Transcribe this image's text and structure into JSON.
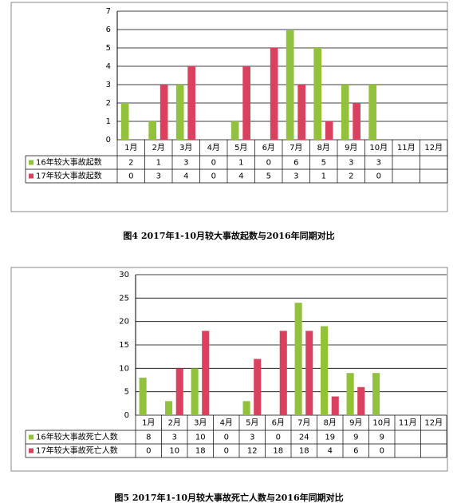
{
  "chart_data": [
    {
      "type": "bar",
      "caption": "图4  2017年1-10月较大事故起数与2016年同期对比",
      "categories": [
        "1月",
        "2月",
        "3月",
        "4月",
        "5月",
        "6月",
        "7月",
        "8月",
        "9月",
        "10月",
        "11月",
        "12月"
      ],
      "series": [
        {
          "name": "16年较大事故起数",
          "color": "#92c13b",
          "values": [
            2,
            1,
            3,
            0,
            1,
            0,
            6,
            5,
            3,
            3,
            null,
            null
          ]
        },
        {
          "name": "17年较大事故起数",
          "color": "#d9415f",
          "values": [
            0,
            3,
            4,
            0,
            4,
            5,
            3,
            1,
            2,
            0,
            null,
            null
          ]
        }
      ],
      "ylim": [
        0,
        7
      ],
      "yticks": [
        0,
        1,
        2,
        3,
        4,
        5,
        6,
        7
      ],
      "grid": true
    },
    {
      "type": "bar",
      "caption": "图5  2017年1-10月较大事故死亡人数与2016年同期对比",
      "categories": [
        "1月",
        "2月",
        "3月",
        "4月",
        "5月",
        "6月",
        "7月",
        "8月",
        "9月",
        "10月",
        "11月",
        "12月"
      ],
      "series": [
        {
          "name": "16年较大事故死亡人数",
          "color": "#92c13b",
          "values": [
            8,
            3,
            10,
            0,
            3,
            0,
            24,
            19,
            9,
            9,
            null,
            null
          ]
        },
        {
          "name": "17年较大事故死亡人数",
          "color": "#d9415f",
          "values": [
            0,
            10,
            18,
            0,
            12,
            18,
            18,
            4,
            6,
            0,
            null,
            null
          ]
        }
      ],
      "ylim": [
        0,
        30
      ],
      "yticks": [
        0,
        5,
        10,
        15,
        20,
        25,
        30
      ],
      "grid": true
    }
  ]
}
